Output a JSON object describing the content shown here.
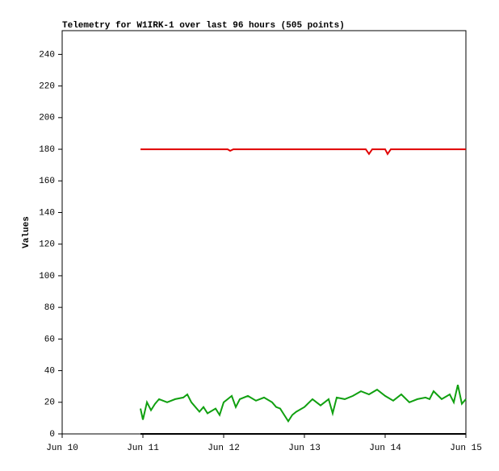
{
  "chart_data": {
    "type": "line",
    "title": "Telemetry for W1IRK-1 over last 96 hours (505 points)",
    "y_label": "Values",
    "xlim": [
      10,
      15
    ],
    "xticks": [
      {
        "value": 10,
        "label": "Jun 10"
      },
      {
        "value": 11,
        "label": "Jun 11"
      },
      {
        "value": 12,
        "label": "Jun 12"
      },
      {
        "value": 13,
        "label": "Jun 13"
      },
      {
        "value": 14,
        "label": "Jun 14"
      },
      {
        "value": 15,
        "label": "Jun 15"
      }
    ],
    "ylim": [
      0,
      255
    ],
    "yticks": [
      0,
      20,
      40,
      60,
      80,
      100,
      120,
      140,
      160,
      180,
      200,
      220,
      240
    ],
    "series": [
      {
        "color": "#e00000",
        "x": [
          10.97,
          12.05,
          12.08,
          12.12,
          13.76,
          13.8,
          13.84,
          14.0,
          14.03,
          14.07,
          15.0
        ],
        "values": [
          180,
          180,
          179,
          180,
          180,
          177,
          180,
          180,
          177,
          180,
          180
        ]
      },
      {
        "color": "#10a010",
        "x": [
          10.97,
          11.0,
          11.05,
          11.1,
          11.15,
          11.2,
          11.3,
          11.4,
          11.5,
          11.55,
          11.6,
          11.7,
          11.75,
          11.8,
          11.9,
          11.95,
          12.0,
          12.1,
          12.15,
          12.2,
          12.3,
          12.4,
          12.5,
          12.6,
          12.65,
          12.7,
          12.75,
          12.8,
          12.85,
          12.9,
          13.0,
          13.1,
          13.2,
          13.3,
          13.35,
          13.4,
          13.5,
          13.6,
          13.7,
          13.8,
          13.9,
          14.0,
          14.1,
          14.2,
          14.3,
          14.4,
          14.5,
          14.55,
          14.6,
          14.7,
          14.8,
          14.85,
          14.9,
          14.95,
          15.0
        ],
        "values": [
          16,
          9,
          20,
          15,
          19,
          22,
          20,
          22,
          23,
          25,
          20,
          14,
          17,
          13,
          16,
          12,
          20,
          24,
          17,
          22,
          24,
          21,
          23,
          20,
          17,
          16,
          12,
          8,
          12,
          14,
          17,
          22,
          18,
          22,
          13,
          23,
          22,
          24,
          27,
          25,
          28,
          24,
          21,
          25,
          20,
          22,
          23,
          22,
          27,
          22,
          25,
          20,
          31,
          19,
          22
        ]
      },
      {
        "color": "#000000",
        "x": [
          10.97,
          15.0
        ],
        "values": [
          0,
          0
        ]
      }
    ]
  }
}
